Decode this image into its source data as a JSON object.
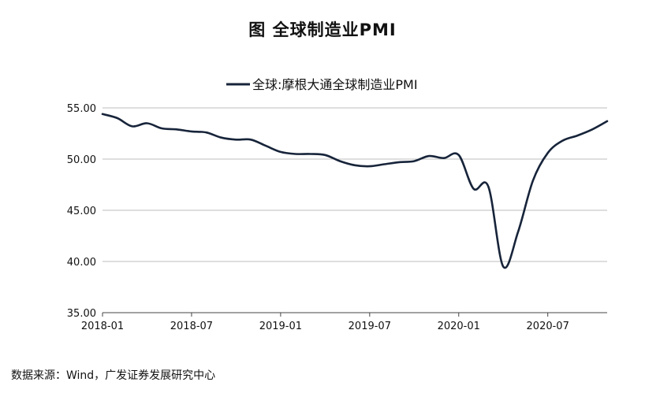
{
  "figure_title": "图   全球制造业PMI",
  "source_note": "数据来源：Wind，广发证券发展研究中心",
  "chart_data": {
    "type": "line",
    "title": "",
    "xlabel": "",
    "ylabel": "",
    "ylim": [
      35,
      55
    ],
    "yticks": [
      "35.00",
      "40.00",
      "45.00",
      "50.00",
      "55.00"
    ],
    "x_tick_labels": [
      "2018-01",
      "2018-07",
      "2019-01",
      "2019-07",
      "2020-01",
      "2020-07"
    ],
    "legend": {
      "position": "top-center"
    },
    "grid": "horizontal",
    "line_color": "#17243a",
    "x": [
      "2018-01",
      "2018-02",
      "2018-03",
      "2018-04",
      "2018-05",
      "2018-06",
      "2018-07",
      "2018-08",
      "2018-09",
      "2018-10",
      "2018-11",
      "2018-12",
      "2019-01",
      "2019-02",
      "2019-03",
      "2019-04",
      "2019-05",
      "2019-06",
      "2019-07",
      "2019-08",
      "2019-09",
      "2019-10",
      "2019-11",
      "2019-12",
      "2020-01",
      "2020-02",
      "2020-03",
      "2020-04",
      "2020-05",
      "2020-06",
      "2020-07",
      "2020-08",
      "2020-09",
      "2020-10",
      "2020-11"
    ],
    "series": [
      {
        "name": "全球:摩根大通全球制造业PMI",
        "values": [
          54.4,
          54.0,
          53.2,
          53.5,
          53.0,
          52.9,
          52.7,
          52.6,
          52.1,
          51.9,
          51.9,
          51.3,
          50.7,
          50.5,
          50.5,
          50.4,
          49.8,
          49.4,
          49.3,
          49.5,
          49.7,
          49.8,
          50.3,
          50.1,
          50.4,
          47.1,
          47.3,
          39.5,
          42.9,
          47.9,
          50.6,
          51.8,
          52.3,
          52.9,
          53.7
        ]
      }
    ]
  }
}
